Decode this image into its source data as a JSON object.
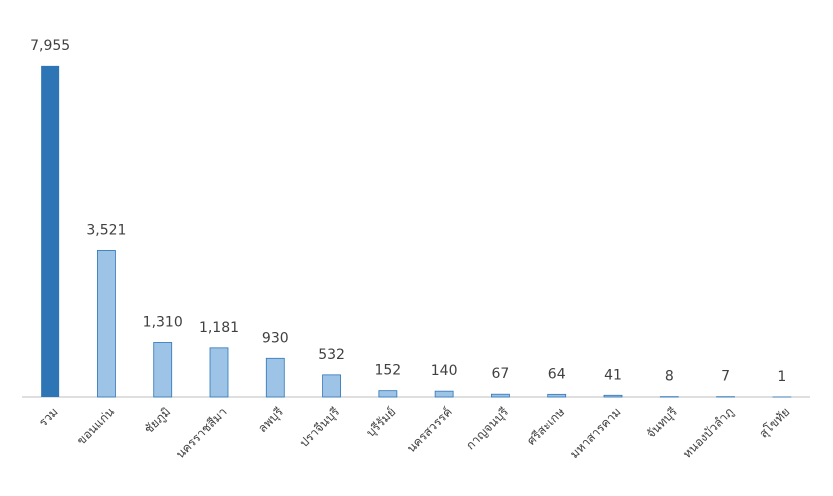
{
  "chart_data": {
    "type": "bar",
    "categories": [
      "รวม",
      "ขอนแก่น",
      "ชัยภูมิ",
      "นครราชสีมา",
      "ลพบุรี",
      "ปราจีนบุรี",
      "บุรีรัมย์",
      "นครสวรรค์",
      "กาญจนบุรี",
      "ศรีสะเกษ",
      "มหาสารคาม",
      "จันทบุรี",
      "หนองบัวลำภู",
      "สุโขทัย"
    ],
    "values": [
      7955,
      3521,
      1310,
      1181,
      930,
      532,
      152,
      140,
      67,
      64,
      41,
      8,
      7,
      1
    ],
    "value_labels": [
      "7,955",
      "3,521",
      "1,310",
      "1,181",
      "930",
      "532",
      "152",
      "140",
      "67",
      "64",
      "41",
      "8",
      "7",
      "1"
    ],
    "colors": [
      "#2e75b6",
      "#9dc3e6",
      "#9dc3e6",
      "#9dc3e6",
      "#9dc3e6",
      "#9dc3e6",
      "#9dc3e6",
      "#9dc3e6",
      "#9dc3e6",
      "#9dc3e6",
      "#9dc3e6",
      "#9dc3e6",
      "#9dc3e6",
      "#9dc3e6"
    ],
    "ylim": [
      0,
      8000
    ]
  }
}
